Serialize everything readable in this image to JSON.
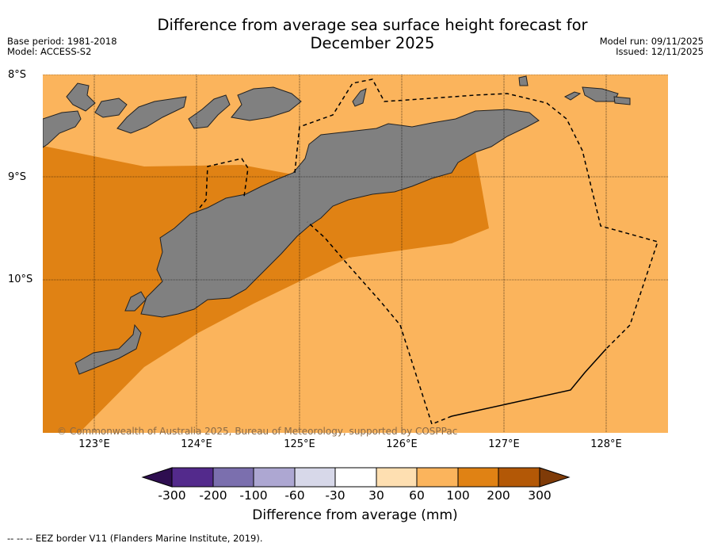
{
  "title": {
    "line1": "Difference from average sea surface height forecast for",
    "line2": "December 2025"
  },
  "meta_left": {
    "base_period": "Base period: 1981-2018",
    "model": "Model: ACCESS-S2"
  },
  "meta_right": {
    "model_run": "Model run: 09/11/2025",
    "issued": "Issued: 12/11/2025"
  },
  "map": {
    "lat_labels": [
      "8°S",
      "9°S",
      "10°S"
    ],
    "lon_labels": [
      "123°E",
      "124°E",
      "125°E",
      "126°E",
      "127°E",
      "128°E"
    ],
    "extent": {
      "lon": [
        122.5,
        128.6
      ],
      "lat": [
        -11.5,
        -8.0
      ]
    },
    "land_color": "#808080",
    "region_values_mm": {
      "north_and_south_sea": "60 to 100",
      "south_coast_band": "100 to 200"
    },
    "copyright": "© Commonwealth of Australia 2025, Bureau of Meteorology, supported by COSPPac"
  },
  "colorbar": {
    "tick_labels": [
      "-300",
      "-200",
      "-100",
      "-60",
      "-30",
      "30",
      "60",
      "100",
      "200",
      "300"
    ],
    "colors": [
      "#2e0e50",
      "#532a8c",
      "#7b6fae",
      "#ada7d2",
      "#d7d8e9",
      "#ffffff",
      "#fedfb1",
      "#fbb45c",
      "#e08214",
      "#b35806",
      "#7f3b08"
    ],
    "title": "Difference from average (mm)"
  },
  "legend": {
    "eez": "--  --  -- EEZ border V11 (Flanders Marine Institute, 2019)."
  }
}
